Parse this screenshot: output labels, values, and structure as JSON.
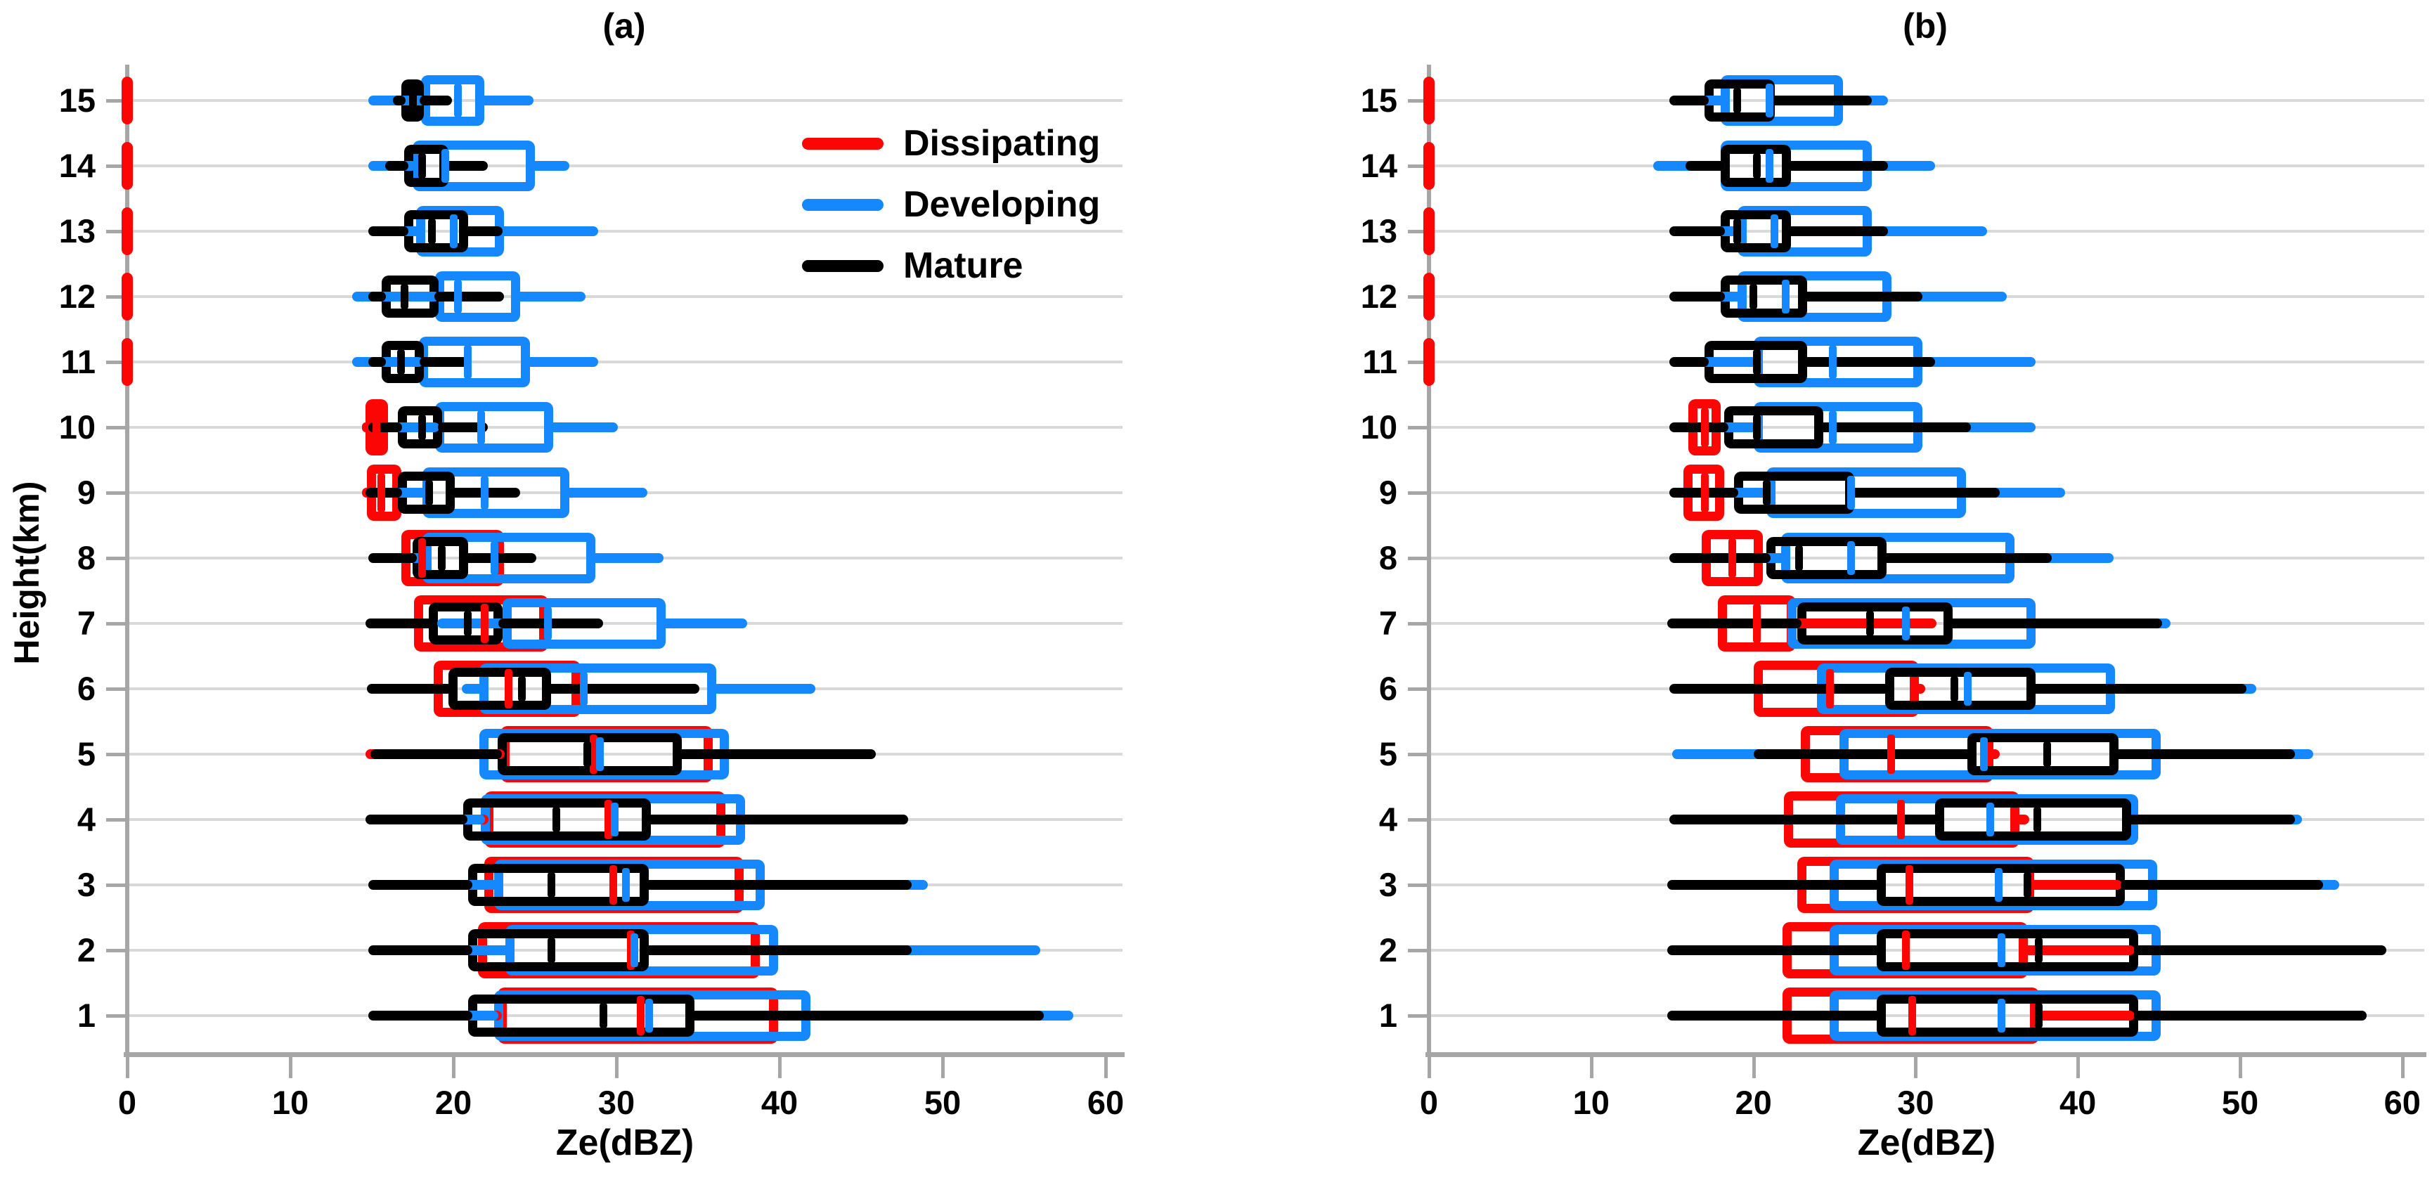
{
  "figure": {
    "background": "#ffffff",
    "colors": {
      "dissipating": "#fb0505",
      "developing": "#1488fc",
      "mature": "#000000",
      "gridline": "#d9d9d9",
      "axis": "#a6a6a6",
      "text": "#000000"
    }
  },
  "legend": {
    "position": "upper-right-of-panel-a",
    "items": [
      {
        "label": "Dissipating",
        "series": "dissipating",
        "color": "#fb0505"
      },
      {
        "label": "Developing",
        "series": "developing",
        "color": "#1488fc"
      },
      {
        "label": "Mature",
        "series": "mature",
        "color": "#000000"
      }
    ]
  },
  "chart_data": [
    {
      "type": "boxplot-horizontal",
      "panel": "a",
      "title": "(a)",
      "xlabel": "Ze(dBZ)",
      "ylabel": "Height(km)",
      "ylabel_shown": true,
      "xlim": [
        0,
        60
      ],
      "xticks": [
        0,
        10,
        20,
        30,
        40,
        50,
        60
      ],
      "grid": "horizontal-light-gray",
      "series_order": [
        "dissipating",
        "developing",
        "mature"
      ],
      "values_format": "[whisker_min, q1, median, q3, whisker_max] in dBZ; zero-marker = red dash at 0 dBZ",
      "rows": [
        {
          "height": 15,
          "dissipating": "zero-marker",
          "developing": [
            14.8,
            18.0,
            20.3,
            21.9,
            24.9
          ],
          "mature": [
            16.3,
            16.8,
            17.5,
            18.2,
            19.9
          ]
        },
        {
          "height": 14,
          "dissipating": "zero-marker",
          "developing": [
            14.8,
            17.5,
            19.5,
            25.0,
            27.1
          ],
          "mature": [
            15.8,
            17.0,
            18.1,
            19.7,
            22.1
          ]
        },
        {
          "height": 13,
          "dissipating": "zero-marker",
          "developing": [
            15.5,
            17.7,
            20.0,
            23.1,
            28.9
          ],
          "mature": [
            14.8,
            17.0,
            18.7,
            20.9,
            23.0
          ]
        },
        {
          "height": 12,
          "dissipating": "zero-marker",
          "developing": [
            13.8,
            18.9,
            20.3,
            24.1,
            28.1
          ],
          "mature": [
            14.8,
            15.6,
            17.0,
            19.1,
            23.1
          ]
        },
        {
          "height": 11,
          "dissipating": "zero-marker",
          "developing": [
            13.8,
            17.9,
            20.9,
            24.7,
            28.9
          ],
          "mature": [
            14.8,
            15.6,
            16.8,
            18.2,
            21.1
          ]
        },
        {
          "height": 10,
          "dissipating": [
            14.4,
            14.6,
            15.3,
            16.0,
            16.2
          ],
          "developing": [
            15.5,
            18.9,
            21.7,
            26.1,
            30.1
          ],
          "mature": [
            14.8,
            16.6,
            18.1,
            19.3,
            22.1
          ]
        },
        {
          "height": 9,
          "dissipating": [
            14.4,
            14.7,
            15.6,
            16.8,
            17.0
          ],
          "developing": [
            16.0,
            18.1,
            21.9,
            27.1,
            31.9
          ],
          "mature": [
            14.6,
            16.6,
            18.5,
            20.1,
            24.1
          ]
        },
        {
          "height": 8,
          "dissipating": [
            16.5,
            16.8,
            18.1,
            23.1,
            23.3
          ],
          "developing": [
            16.8,
            18.1,
            22.5,
            28.7,
            32.9
          ],
          "mature": [
            14.8,
            17.5,
            19.3,
            20.9,
            25.1
          ]
        },
        {
          "height": 7,
          "dissipating": [
            17.3,
            17.6,
            21.9,
            25.8,
            26.1
          ],
          "developing": [
            19.0,
            23.0,
            25.8,
            33.0,
            38.0
          ],
          "mature": [
            14.6,
            18.5,
            20.9,
            23.0,
            29.2
          ]
        },
        {
          "height": 6,
          "dissipating": [
            18.3,
            18.8,
            23.4,
            27.8,
            28.2
          ],
          "developing": [
            20.5,
            21.6,
            28.0,
            36.1,
            42.2
          ],
          "mature": [
            14.7,
            19.7,
            24.2,
            26.0,
            35.1
          ]
        },
        {
          "height": 5,
          "dissipating": [
            14.6,
            22.9,
            28.6,
            35.9,
            42.6
          ],
          "developing": [
            20.5,
            21.6,
            29.0,
            36.9,
            38.5
          ],
          "mature": [
            14.9,
            22.7,
            28.2,
            34.0,
            45.9
          ]
        },
        {
          "height": 4,
          "dissipating": [
            15.0,
            21.9,
            29.5,
            36.7,
            40.0
          ],
          "developing": [
            20.0,
            21.7,
            29.9,
            37.9,
            38.5
          ],
          "mature": [
            14.6,
            20.6,
            26.3,
            32.1,
            47.9
          ]
        },
        {
          "height": 3,
          "dissipating": [
            21.0,
            21.9,
            29.8,
            37.8,
            38.5
          ],
          "developing": [
            20.0,
            22.5,
            30.6,
            39.1,
            49.1
          ],
          "mature": [
            14.8,
            20.9,
            26.0,
            32.0,
            48.1
          ]
        },
        {
          "height": 2,
          "dissipating": [
            15.0,
            21.5,
            30.9,
            38.8,
            47.2
          ],
          "developing": [
            20.0,
            23.2,
            31.1,
            39.9,
            56.0
          ],
          "mature": [
            14.8,
            20.9,
            26.0,
            32.0,
            48.1
          ]
        },
        {
          "height": 1,
          "dissipating": [
            22.0,
            22.7,
            31.5,
            39.9,
            40.5
          ],
          "developing": [
            20.5,
            22.5,
            32.0,
            41.9,
            58.0
          ],
          "mature": [
            14.8,
            20.9,
            29.2,
            34.8,
            56.2
          ]
        }
      ]
    },
    {
      "type": "boxplot-horizontal",
      "panel": "b",
      "title": "(b)",
      "xlabel": "Ze(dBZ)",
      "ylabel": "Height(km)",
      "ylabel_shown": false,
      "xlim": [
        0,
        60
      ],
      "xticks": [
        0,
        10,
        20,
        30,
        40,
        50,
        60
      ],
      "grid": "horizontal-light-gray",
      "series_order": [
        "dissipating",
        "developing",
        "mature"
      ],
      "values_format": "[whisker_min, q1, median, q3, whisker_max] in dBZ; zero-marker = red dash at 0 dBZ",
      "rows": [
        {
          "height": 15,
          "dissipating": "zero-marker",
          "developing": [
            15.8,
            18.0,
            21.0,
            25.5,
            28.3
          ],
          "mature": [
            14.8,
            17.0,
            19.0,
            21.3,
            27.3
          ]
        },
        {
          "height": 14,
          "dissipating": "zero-marker",
          "developing": [
            13.8,
            18.0,
            21.0,
            27.3,
            31.2
          ],
          "mature": [
            15.8,
            18.0,
            20.2,
            22.3,
            28.3
          ]
        },
        {
          "height": 13,
          "dissipating": "zero-marker",
          "developing": [
            16.0,
            19.0,
            21.3,
            27.3,
            34.4
          ],
          "mature": [
            14.8,
            18.0,
            19.0,
            22.3,
            28.3
          ]
        },
        {
          "height": 12,
          "dissipating": "zero-marker",
          "developing": [
            16.0,
            19.0,
            22.0,
            28.5,
            35.6
          ],
          "mature": [
            14.8,
            18.0,
            20.0,
            23.3,
            30.4
          ]
        },
        {
          "height": 11,
          "dissipating": "zero-marker",
          "developing": [
            15.4,
            20.0,
            24.9,
            30.4,
            37.4
          ],
          "mature": [
            14.8,
            17.0,
            20.2,
            23.3,
            31.2
          ]
        },
        {
          "height": 10,
          "dissipating": [
            15.0,
            16.0,
            17.0,
            18.0,
            18.5
          ],
          "developing": [
            16.0,
            20.0,
            24.9,
            30.4,
            37.4
          ],
          "mature": [
            14.8,
            18.2,
            20.2,
            24.3,
            33.4
          ]
        },
        {
          "height": 9,
          "dissipating": [
            15.5,
            15.7,
            17.0,
            18.2,
            18.8
          ],
          "developing": [
            14.9,
            20.8,
            26.0,
            33.1,
            39.2
          ],
          "mature": [
            14.8,
            18.8,
            20.8,
            26.2,
            35.2
          ]
        },
        {
          "height": 8,
          "dissipating": [
            16.5,
            16.8,
            18.7,
            20.6,
            21.4
          ],
          "developing": [
            15.1,
            21.7,
            26.0,
            36.1,
            42.2
          ],
          "mature": [
            14.8,
            20.8,
            22.8,
            28.2,
            38.4
          ]
        },
        {
          "height": 7,
          "dissipating": [
            17.5,
            17.8,
            20.2,
            22.6,
            31.3
          ],
          "developing": [
            15.0,
            22.1,
            29.4,
            37.4,
            45.7
          ],
          "mature": [
            14.7,
            22.7,
            27.2,
            32.3,
            45.2
          ]
        },
        {
          "height": 6,
          "dissipating": [
            19.5,
            20.0,
            24.7,
            30.2,
            30.6
          ],
          "developing": [
            15.0,
            23.9,
            33.2,
            42.3,
            51.0
          ],
          "mature": [
            14.8,
            28.1,
            32.4,
            37.4,
            50.4
          ]
        },
        {
          "height": 5,
          "dissipating": [
            16.0,
            22.9,
            28.5,
            34.8,
            35.2
          ],
          "developing": [
            15.0,
            25.3,
            34.2,
            45.1,
            54.5
          ],
          "mature": [
            20.0,
            33.2,
            38.1,
            42.5,
            53.4
          ]
        },
        {
          "height": 4,
          "dissipating": [
            21.0,
            21.9,
            29.1,
            36.4,
            37.0
          ],
          "developing": [
            15.0,
            25.1,
            34.6,
            43.7,
            53.8
          ],
          "mature": [
            14.8,
            31.2,
            37.5,
            43.3,
            53.4
          ]
        },
        {
          "height": 3,
          "dissipating": [
            22.0,
            22.7,
            29.6,
            37.3,
            42.7
          ],
          "developing": [
            14.9,
            24.7,
            35.1,
            44.9,
            56.1
          ],
          "mature": [
            14.7,
            27.6,
            36.9,
            42.9,
            55.1
          ]
        },
        {
          "height": 2,
          "dissipating": [
            21.0,
            21.8,
            29.4,
            36.9,
            43.5
          ],
          "developing": [
            14.9,
            24.7,
            35.3,
            45.1,
            57.6
          ],
          "mature": [
            14.7,
            27.6,
            37.6,
            43.7,
            59.0
          ]
        },
        {
          "height": 1,
          "dissipating": [
            21.5,
            21.8,
            29.8,
            37.6,
            43.5
          ],
          "developing": [
            14.9,
            24.7,
            35.3,
            45.1,
            57.8
          ],
          "mature": [
            14.7,
            27.6,
            37.6,
            43.7,
            57.8
          ]
        }
      ]
    }
  ]
}
